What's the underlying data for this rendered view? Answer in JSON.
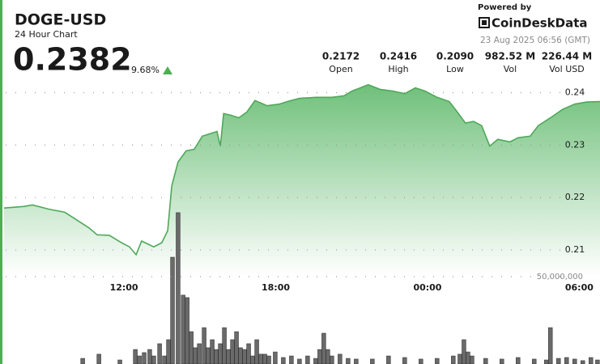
{
  "header": {
    "symbol": "DOGE-USD",
    "subtitle": "24 Hour Chart",
    "price": "0.2382",
    "change": "9.68%",
    "powered_by": "Powered by",
    "brand": "CoinDeskData",
    "timestamp": "23 Aug 2025 06:56 (GMT)"
  },
  "stats": [
    {
      "value": "0.2172",
      "label": "Open"
    },
    {
      "value": "0.2416",
      "label": "High"
    },
    {
      "value": "0.2090",
      "label": "Low"
    },
    {
      "value": "982.52 M",
      "label": "Vol"
    },
    {
      "value": "226.44 M",
      "label": "Vol USD"
    }
  ],
  "chart_data": [
    {
      "type": "area",
      "color": "#4ea85a",
      "grid": true,
      "xlim": [
        7.26,
        30.82
      ],
      "xticks": [
        {
          "value": 12,
          "label": "12:00"
        },
        {
          "value": 18,
          "label": "18:00"
        },
        {
          "value": 24,
          "label": "00:00"
        },
        {
          "value": 30,
          "label": "06:00"
        }
      ],
      "ylim": [
        0.205,
        0.242
      ],
      "yticks": [
        0.21,
        0.22,
        0.23,
        0.24
      ],
      "x": [
        7.26,
        8.06,
        8.38,
        9.02,
        9.66,
        10.14,
        10.62,
        10.94,
        11.42,
        11.9,
        12.22,
        12.48,
        12.7,
        13.18,
        13.5,
        13.73,
        13.89,
        14.14,
        14.46,
        14.78,
        15.1,
        15.42,
        15.68,
        15.81,
        15.94,
        16.22,
        16.54,
        16.86,
        17.18,
        17.66,
        18.14,
        18.46,
        18.94,
        19.58,
        20.22,
        20.7,
        21.02,
        21.34,
        21.66,
        22.14,
        22.62,
        23.1,
        23.52,
        23.9,
        24.38,
        24.86,
        25.18,
        25.5,
        25.82,
        26.14,
        26.46,
        26.78,
        27.26,
        27.58,
        28.06,
        28.38,
        28.86,
        29.34,
        29.82,
        30.3,
        30.82
      ],
      "values": [
        0.218,
        0.2183,
        0.2186,
        0.2178,
        0.2172,
        0.2157,
        0.2142,
        0.2129,
        0.2128,
        0.2114,
        0.2106,
        0.2091,
        0.2117,
        0.2106,
        0.2114,
        0.2137,
        0.2222,
        0.2268,
        0.2289,
        0.2292,
        0.2317,
        0.2322,
        0.2326,
        0.2298,
        0.236,
        0.2357,
        0.2352,
        0.2363,
        0.2385,
        0.2375,
        0.2378,
        0.2383,
        0.2389,
        0.2391,
        0.2391,
        0.2394,
        0.2403,
        0.2409,
        0.2415,
        0.2406,
        0.2403,
        0.2398,
        0.2409,
        0.2403,
        0.2391,
        0.2383,
        0.2363,
        0.2342,
        0.2345,
        0.2337,
        0.2298,
        0.2311,
        0.2306,
        0.2314,
        0.2317,
        0.2337,
        0.2352,
        0.2368,
        0.2378,
        0.2382,
        0.2383
      ]
    },
    {
      "type": "bar",
      "color": "#6a6a6a",
      "grid": true,
      "xlim": [
        7.26,
        30.82
      ],
      "ylim": [
        0,
        100000000
      ],
      "yticks": [
        {
          "value": 50000000,
          "label": "50,000,000"
        }
      ],
      "x": [
        10.37,
        11.01,
        11.84,
        12.45,
        12.61,
        12.8,
        13.02,
        13.18,
        13.41,
        13.6,
        13.76,
        13.92,
        14.14,
        14.34,
        14.5,
        14.66,
        14.82,
        14.98,
        15.17,
        15.33,
        15.49,
        15.65,
        15.81,
        15.97,
        16.13,
        16.29,
        16.45,
        16.61,
        16.77,
        16.93,
        17.09,
        17.25,
        17.41,
        17.57,
        17.73,
        17.98,
        18.3,
        18.62,
        18.94,
        19.26,
        19.58,
        19.74,
        19.9,
        20.06,
        20.22,
        20.54,
        20.86,
        21.18,
        21.82,
        22.46,
        23.1,
        23.74,
        24.38,
        25.02,
        25.28,
        25.44,
        25.6,
        25.76,
        26.3,
        26.94,
        27.58,
        28.22,
        28.7,
        28.86,
        29.18,
        29.5,
        29.82,
        30.14,
        30.46,
        30.72
      ],
      "values": [
        3200000,
        5600000,
        2300000,
        8300000,
        4600000,
        6500000,
        8300000,
        4600000,
        11600000,
        4600000,
        13900000,
        61100000,
        86600000,
        39400000,
        38000000,
        18500000,
        9300000,
        11600000,
        20800000,
        9300000,
        13900000,
        8300000,
        11600000,
        20800000,
        8300000,
        13900000,
        18500000,
        9300000,
        8300000,
        11600000,
        4600000,
        13900000,
        5600000,
        5600000,
        4600000,
        6900000,
        3700000,
        4600000,
        2800000,
        4600000,
        3200000,
        8300000,
        17600000,
        8300000,
        4600000,
        5600000,
        3200000,
        2800000,
        2800000,
        4600000,
        3700000,
        2800000,
        3200000,
        4600000,
        5600000,
        13900000,
        6900000,
        4600000,
        3200000,
        2800000,
        3700000,
        2800000,
        2300000,
        20800000,
        3200000,
        3700000,
        2800000,
        1900000,
        3700000,
        2300000
      ]
    }
  ]
}
